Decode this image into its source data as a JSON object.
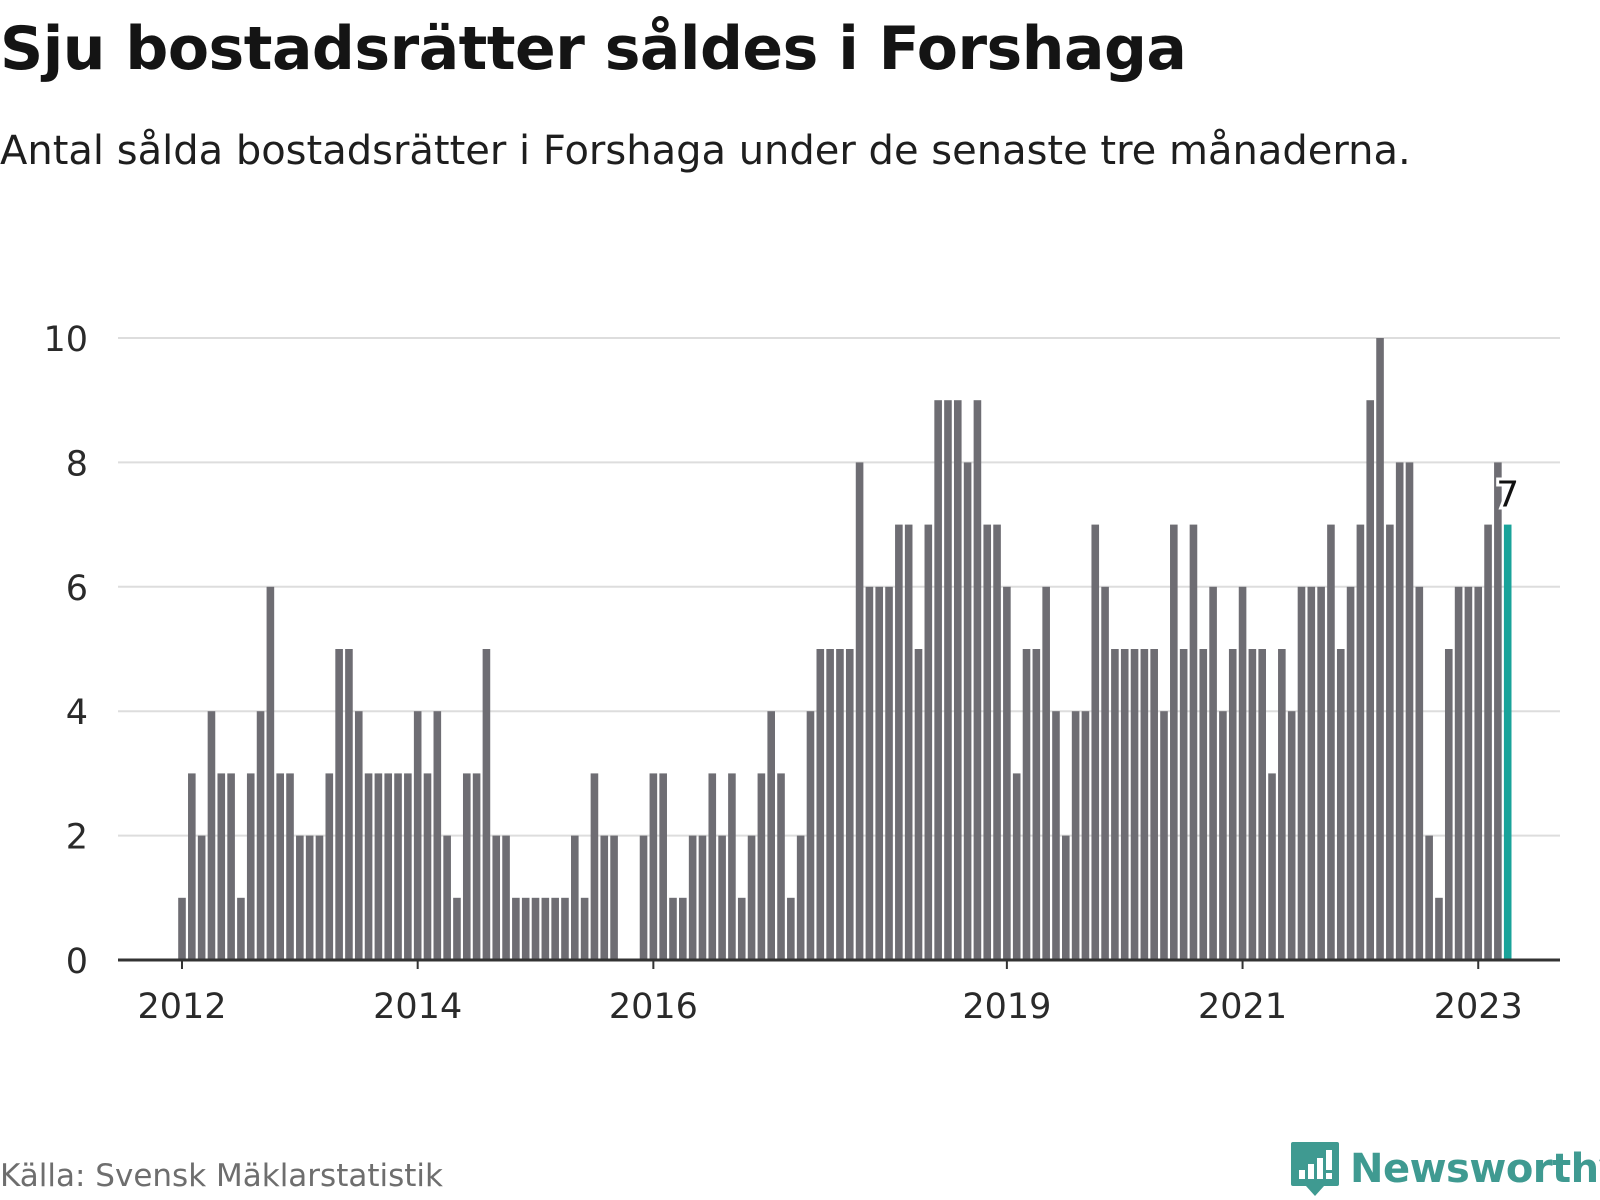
{
  "header": {
    "title": "Sju bostadsrätter såldes i Forshaga",
    "subtitle": "Antal sålda bostadsrätter i Forshaga under de senaste tre månaderna."
  },
  "footer": {
    "source": "Källa: Svensk Mäklarstatistik",
    "logo_text": "Newsworthy"
  },
  "colors": {
    "bar": "#6e6d73",
    "highlight": "#1aa39a",
    "grid": "#dddddd",
    "axis": "#333333",
    "logo": "#3f9a91"
  },
  "chart_data": {
    "type": "bar",
    "title": "Sju bostadsrätter såldes i Forshaga",
    "subtitle": "Antal sålda bostadsrätter i Forshaga under de senaste tre månaderna.",
    "xlabel": "",
    "ylabel": "",
    "ylim": [
      0,
      10
    ],
    "y_ticks": [
      0,
      2,
      4,
      6,
      8,
      10
    ],
    "grid": true,
    "x_tick_labels": [
      {
        "label": "2012",
        "index": 0
      },
      {
        "label": "2014",
        "index": 24
      },
      {
        "label": "2016",
        "index": 48
      },
      {
        "label": "2019",
        "index": 84
      },
      {
        "label": "2021",
        "index": 108
      },
      {
        "label": "2023",
        "index": 132
      }
    ],
    "start_month": "2012-01",
    "values": [
      1,
      3,
      2,
      4,
      3,
      3,
      1,
      3,
      4,
      6,
      3,
      3,
      2,
      2,
      2,
      3,
      5,
      5,
      4,
      3,
      3,
      3,
      3,
      3,
      4,
      3,
      4,
      2,
      1,
      3,
      3,
      5,
      2,
      2,
      1,
      1,
      1,
      1,
      1,
      1,
      2,
      1,
      3,
      2,
      2,
      0,
      0,
      2,
      3,
      3,
      1,
      1,
      2,
      2,
      3,
      2,
      3,
      1,
      2,
      3,
      4,
      3,
      1,
      2,
      4,
      5,
      5,
      5,
      5,
      8,
      6,
      6,
      6,
      7,
      7,
      5,
      7,
      9,
      9,
      9,
      8,
      9,
      7,
      7,
      6,
      3,
      5,
      5,
      6,
      4,
      2,
      4,
      4,
      7,
      6,
      5,
      5,
      5,
      5,
      5,
      4,
      7,
      5,
      7,
      5,
      6,
      4,
      5,
      6,
      5,
      5,
      3,
      5,
      4,
      6,
      6,
      6,
      7,
      5,
      6,
      7,
      9,
      10,
      7,
      8,
      8,
      6,
      2,
      1,
      5,
      6,
      6,
      6,
      7,
      8,
      7
    ],
    "highlight_index": 135,
    "highlight_label": "7"
  }
}
